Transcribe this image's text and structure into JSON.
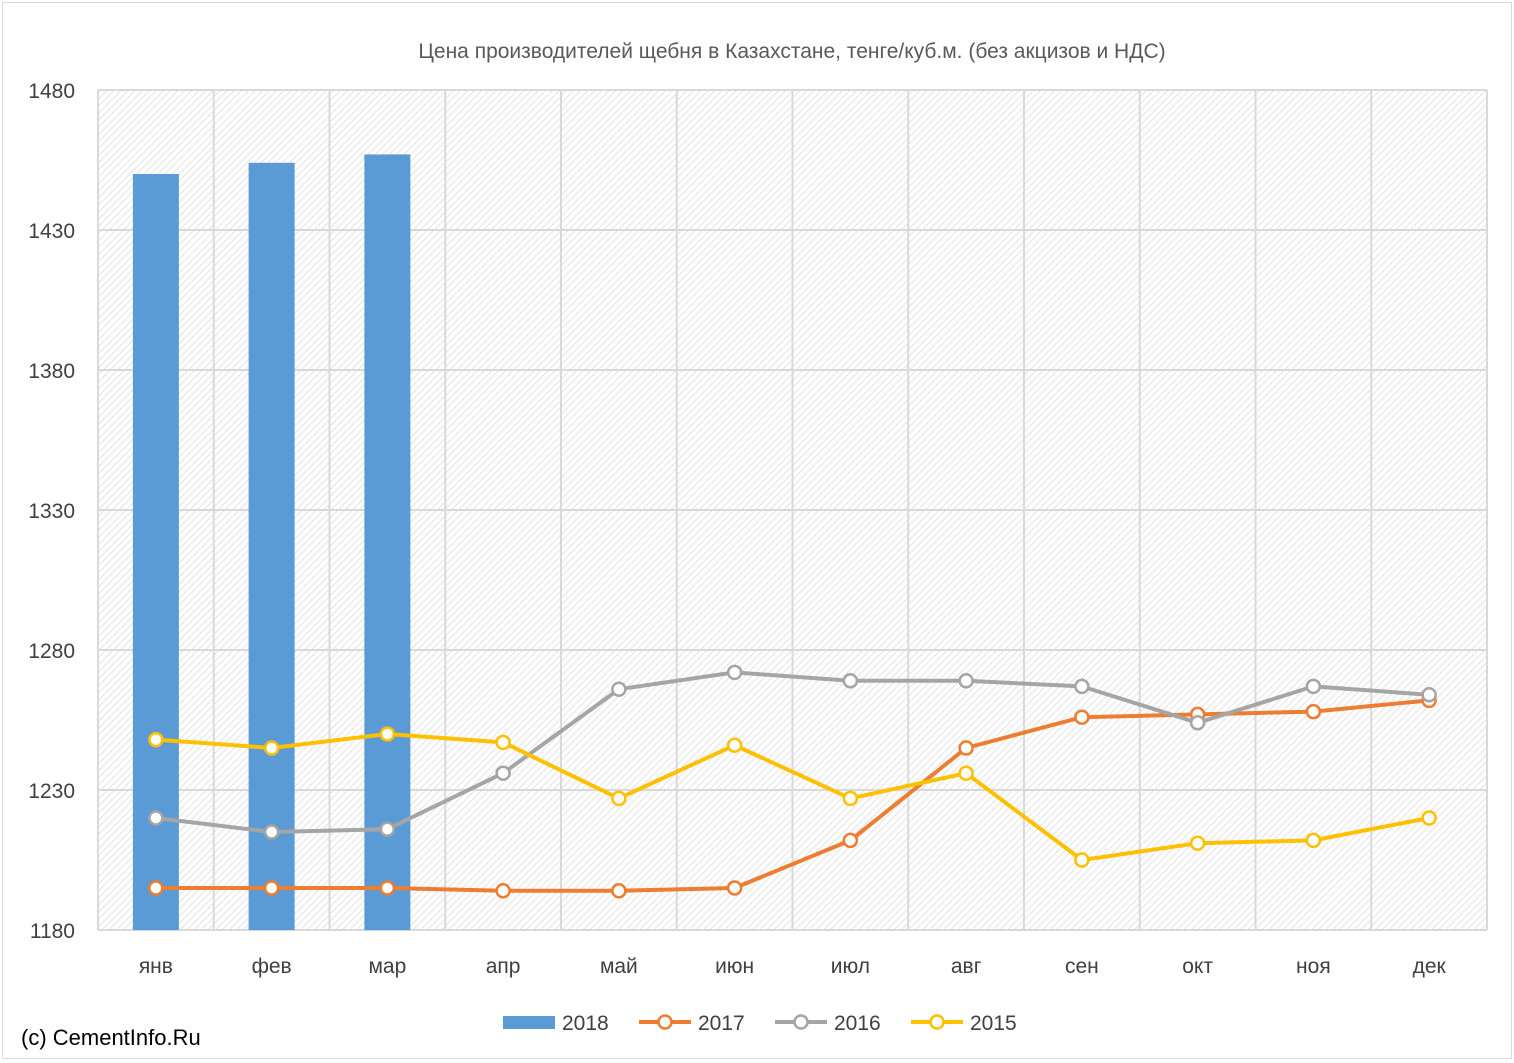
{
  "chart_data": {
    "type": "bar",
    "title": "Цена производителей щебня в Казахстане, тенге/куб.м. (без акцизов и НДС)",
    "xlabel": "",
    "ylabel": "",
    "categories": [
      "янв",
      "фев",
      "мар",
      "апр",
      "май",
      "июн",
      "июл",
      "авг",
      "сен",
      "окт",
      "ноя",
      "дек"
    ],
    "ylim": [
      1180,
      1480
    ],
    "yticks": [
      1180,
      1230,
      1280,
      1330,
      1380,
      1430,
      1480
    ],
    "grid": true,
    "legend_position": "bottom",
    "series": [
      {
        "name": "2018",
        "kind": "bar",
        "color": "#5b9bd5",
        "values": [
          1450,
          1454,
          1457,
          null,
          null,
          null,
          null,
          null,
          null,
          null,
          null,
          null
        ]
      },
      {
        "name": "2017",
        "kind": "line",
        "color": "#ed7d31",
        "values": [
          1195,
          1195,
          1195,
          1194,
          1194,
          1195,
          1212,
          1245,
          1256,
          1257,
          1258,
          1262
        ]
      },
      {
        "name": "2016",
        "kind": "line",
        "color": "#a5a5a5",
        "values": [
          1220,
          1215,
          1216,
          1236,
          1266,
          1272,
          1269,
          1269,
          1267,
          1254,
          1267,
          1264
        ]
      },
      {
        "name": "2015",
        "kind": "line",
        "color": "#ffc000",
        "values": [
          1248,
          1245,
          1250,
          1247,
          1227,
          1246,
          1227,
          1236,
          1205,
          1211,
          1212,
          1220
        ]
      }
    ]
  },
  "source_note": "(c) CementInfo.Ru"
}
